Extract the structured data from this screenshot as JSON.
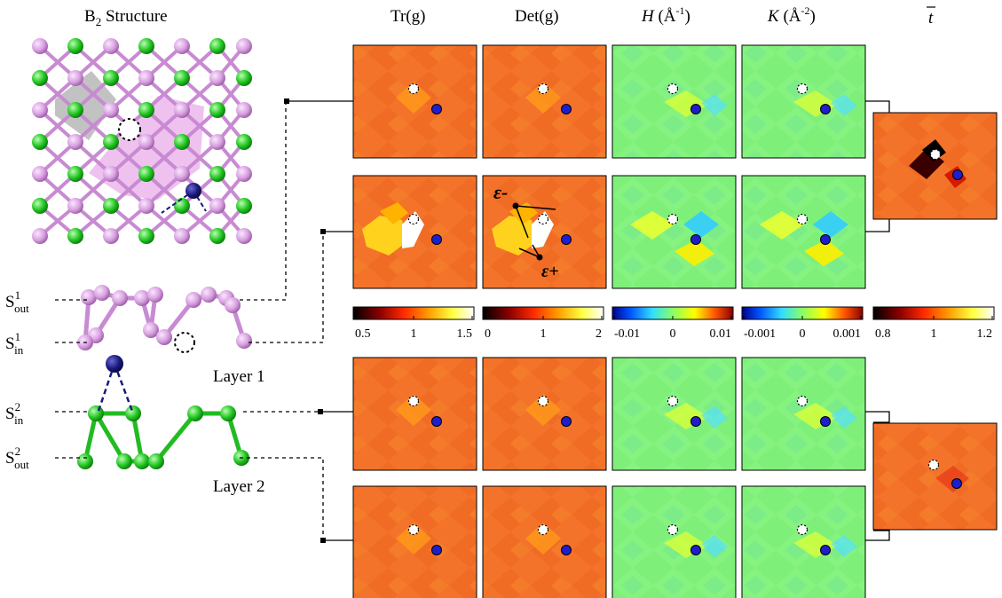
{
  "titles": {
    "structure": "B",
    "structure_sub": "2",
    "structure_tail": " Structure",
    "tr": "Tr(g)",
    "det": "Det(g)",
    "h_label": "H",
    "h_unit": " (Å",
    "h_exp": "-1",
    "k_label": "K",
    "k_unit": " (Å",
    "k_exp": "-2",
    "tbar": "t"
  },
  "layers": {
    "layer1": "Layer 1",
    "layer2": "Layer 2"
  },
  "side_labels": [
    {
      "base": "S",
      "sup": "1",
      "sub": "out"
    },
    {
      "base": "S",
      "sup": "1",
      "sub": "in"
    },
    {
      "base": "S",
      "sup": "2",
      "sub": "in"
    },
    {
      "base": "S",
      "sup": "2",
      "sub": "out"
    }
  ],
  "annotations": {
    "eps_minus": "ε-",
    "eps_plus": "ε+"
  },
  "colorbars": [
    {
      "name": "tr",
      "ticks": [
        "0.5",
        "1",
        "1.5"
      ],
      "colors": [
        "#000000",
        "#8b0000",
        "#ff3000",
        "#ff9900",
        "#ffff33",
        "#ffffff"
      ]
    },
    {
      "name": "det",
      "ticks": [
        "0",
        "1",
        "2"
      ],
      "colors": [
        "#000000",
        "#8b0000",
        "#ff3000",
        "#ff9900",
        "#ffff33",
        "#ffffff"
      ]
    },
    {
      "name": "h",
      "ticks": [
        "-0.01",
        "0",
        "0.01"
      ],
      "colors": [
        "#00008b",
        "#0066ff",
        "#33ddff",
        "#88ff66",
        "#ffff00",
        "#ff6600",
        "#8b0000"
      ]
    },
    {
      "name": "k",
      "ticks": [
        "-0.001",
        "0",
        "0.001"
      ],
      "colors": [
        "#00008b",
        "#0066ff",
        "#33ddff",
        "#88ff66",
        "#ffff00",
        "#ff6600",
        "#8b0000"
      ]
    },
    {
      "name": "tbar",
      "ticks": [
        "0.8",
        "1",
        "1.2"
      ],
      "colors": [
        "#000000",
        "#8b0000",
        "#ff3000",
        "#ff9900",
        "#ffff33",
        "#ffffff"
      ]
    }
  ],
  "colors": {
    "orange_base": "#f4732a",
    "green_base": "#7ef07a",
    "boron_pink": "#d9a0e0",
    "boron_green": "#22cc22",
    "metal_navy": "#1a1a7a",
    "marker_blue": "#1e1ecc"
  }
}
